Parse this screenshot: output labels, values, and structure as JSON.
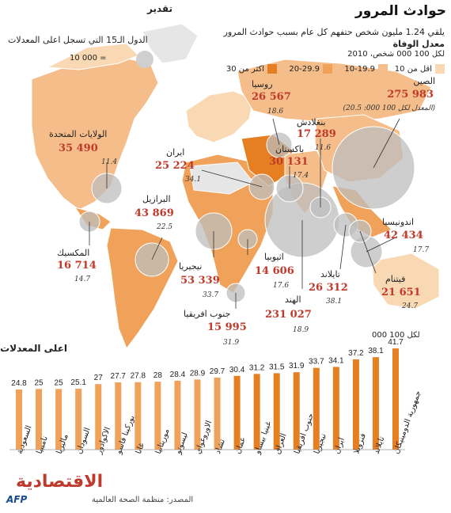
{
  "header": {
    "title": "حوادث المرور",
    "subtitle": "يلقي 1.24 مليون شخص حتفهم كل عام بسبب حوادث المرور",
    "legend_heading": "معدل الوفاة",
    "legend_unit": "لكل 100 000 شخص، 2010",
    "legend_items": [
      {
        "label": "اقل من 10",
        "color": "#f8d9b4"
      },
      {
        "label": "10-19.9",
        "color": "#f4bd8a"
      },
      {
        "label": "20-29.9",
        "color": "#f0a25a"
      },
      {
        "label": "اكثر من 30",
        "color": "#e67e22"
      }
    ]
  },
  "estimate": {
    "title": "تقدير",
    "subtitle": "الدول الـ15 التي تسجل اعلى المعدلات",
    "bubble_value": "10 000 ="
  },
  "countries": [
    {
      "name": "الصين",
      "deaths": "275 983",
      "rate": "(المعدل لكل 100 000: 20.5)"
    },
    {
      "name": "روسيا",
      "deaths": "26 567",
      "rate": "18.6"
    },
    {
      "name": "بنغلادش",
      "deaths": "17 289",
      "rate": "11.6"
    },
    {
      "name": "باكستان",
      "deaths": "30 131",
      "rate": "17.4"
    },
    {
      "name": "الولايات المتحدة",
      "deaths": "35 490",
      "rate": "11.4"
    },
    {
      "name": "ايران",
      "deaths": "25 224",
      "rate": "34.1"
    },
    {
      "name": "البرازيل",
      "deaths": "43 869",
      "rate": "22.5"
    },
    {
      "name": "اندونيسيا",
      "deaths": "42 434",
      "rate": "17.7"
    },
    {
      "name": "المكسيك",
      "deaths": "16 714",
      "rate": "14.7"
    },
    {
      "name": "اثيوبيا",
      "deaths": "14 606",
      "rate": "17.6"
    },
    {
      "name": "نيجيريا",
      "deaths": "53 339",
      "rate": "33.7"
    },
    {
      "name": "تايلاند",
      "deaths": "26 312",
      "rate": "38.1"
    },
    {
      "name": "فيتنام",
      "deaths": "21 651",
      "rate": "24.7"
    },
    {
      "name": "الهند",
      "deaths": "231 027",
      "rate": "18.9"
    },
    {
      "name": "جنوب افريقيا",
      "deaths": "15 995",
      "rate": "31.9"
    }
  ],
  "bar_section": {
    "title": "اعلى المعدلات",
    "unit": "لكل 100 000"
  },
  "chart_data": {
    "type": "bar",
    "title": "اعلى المعدلات",
    "ylabel": "لكل 100 000",
    "categories": [
      "السعودية",
      "ناميبيا",
      "ماليزيا",
      "السودان",
      "الاكوادور",
      "بوركينا فاسو",
      "غانا",
      "موريتانيا",
      "ليسوتو",
      "الاوروغواي",
      "تشاد",
      "عمان",
      "غينيا بيساو",
      "العراق",
      "جنوب افريقيا",
      "نيجيريا",
      "ايران",
      "فنزويلا",
      "تايلاند",
      "جمهورية الدومينيكان"
    ],
    "values": [
      24.8,
      25,
      25,
      25.1,
      27,
      27.7,
      27.8,
      28,
      28.4,
      28.9,
      29.7,
      30.4,
      31.2,
      31.5,
      31.9,
      33.7,
      34.1,
      37.2,
      38.1,
      41.7
    ],
    "colors": {
      "below_30": "#f0a25a",
      "above_30": "#e67e22"
    },
    "ylim": [
      0,
      45
    ],
    "grid": false
  },
  "footer": {
    "source": "المصدر: منظمة الصحة العالمية",
    "logo": "الاقتصادية",
    "agency": "AFP"
  }
}
